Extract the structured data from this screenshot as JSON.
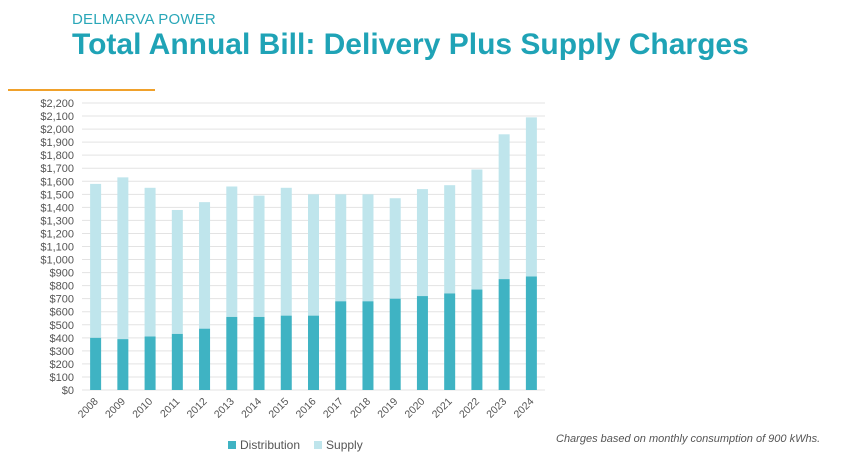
{
  "header": {
    "brand": "DELMARVA POWER",
    "title": "Total Annual Bill: Delivery Plus Supply Charges"
  },
  "footnote": "Charges based on monthly consumption of 900 kWhs.",
  "colors": {
    "distribution": "#3fb3c3",
    "supply": "#bfe5ec",
    "accent": "#f0a12b",
    "title": "#1fa3b6"
  },
  "chart_data": {
    "type": "bar",
    "stacked": true,
    "categories": [
      "2008",
      "2009",
      "2010",
      "2011",
      "2012",
      "2013",
      "2014",
      "2015",
      "2016",
      "2017",
      "2018",
      "2019",
      "2020",
      "2021",
      "2022",
      "2023",
      "2024"
    ],
    "series": [
      {
        "name": "Distribution",
        "values": [
          400,
          390,
          410,
          430,
          470,
          560,
          560,
          570,
          570,
          680,
          680,
          700,
          720,
          740,
          770,
          850,
          870
        ]
      },
      {
        "name": "Supply",
        "values": [
          1180,
          1240,
          1140,
          950,
          970,
          1000,
          930,
          980,
          930,
          820,
          820,
          770,
          820,
          830,
          920,
          1110,
          1220
        ]
      }
    ],
    "y_ticks": [
      "$0",
      "$100",
      "$200",
      "$300",
      "$400",
      "$500",
      "$600",
      "$700",
      "$800",
      "$900",
      "$1,000",
      "$1,100",
      "$1,200",
      "$1,300",
      "$1,400",
      "$1,500",
      "$1,600",
      "$1,700",
      "$1,800",
      "$1,900",
      "$2,000",
      "$2,100",
      "$2,200"
    ],
    "ylim": [
      0,
      2200
    ],
    "grid": true,
    "legend_position": "bottom"
  }
}
